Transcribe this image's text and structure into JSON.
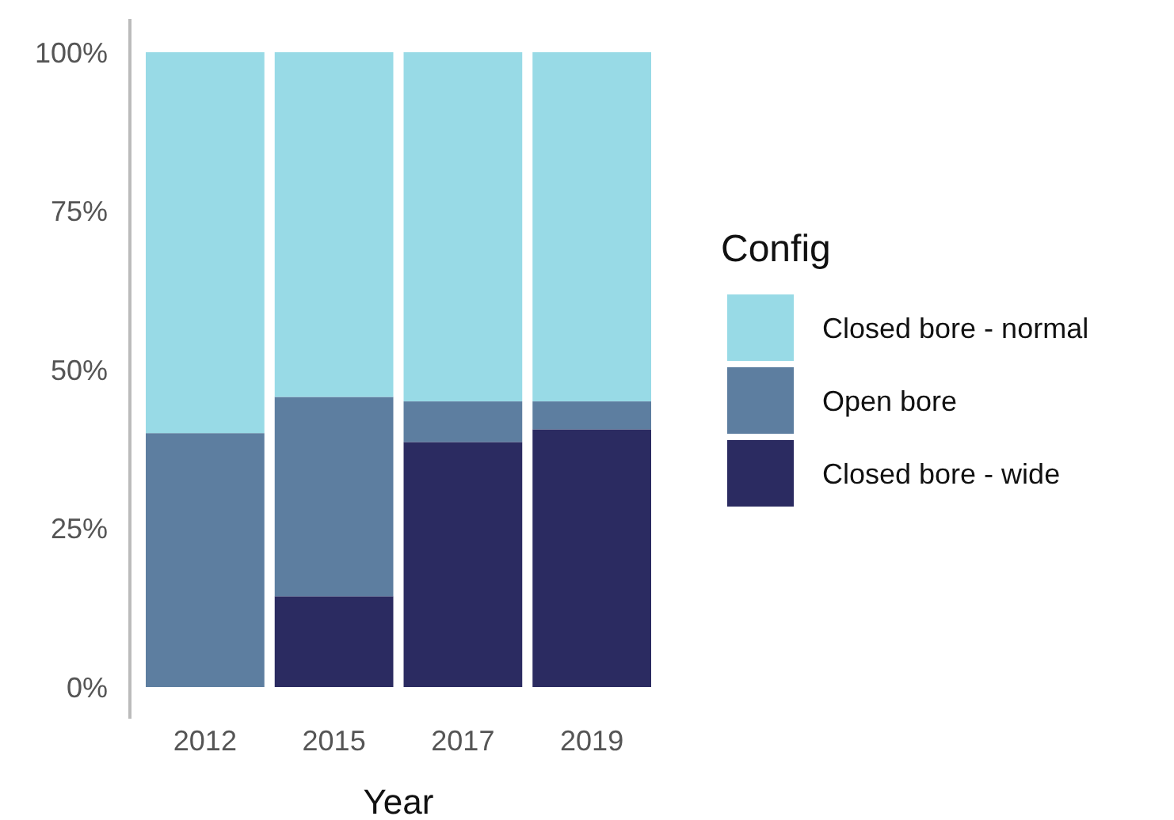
{
  "chart_data": {
    "type": "bar",
    "stacked": true,
    "xlabel": "Year",
    "legend_title": "Config",
    "legend": "right",
    "grid": false,
    "categories": [
      "2012",
      "2015",
      "2017",
      "2019"
    ],
    "series": [
      {
        "name": "Closed bore - wide",
        "color": "#2b2b61",
        "values": [
          0,
          14.3,
          38.6,
          40.6
        ]
      },
      {
        "name": "Open bore",
        "color": "#5d7ea0",
        "values": [
          40,
          31.4,
          6.4,
          4.4
        ]
      },
      {
        "name": "Closed bore - normal",
        "color": "#98dae6",
        "values": [
          60,
          54.3,
          55,
          55
        ]
      }
    ],
    "ylim": [
      0,
      100
    ],
    "yticks": [
      {
        "value": 0,
        "label": "0%"
      },
      {
        "value": 25,
        "label": "25%"
      },
      {
        "value": 50,
        "label": "50%"
      },
      {
        "value": 75,
        "label": "75%"
      },
      {
        "value": 100,
        "label": "100%"
      }
    ]
  }
}
